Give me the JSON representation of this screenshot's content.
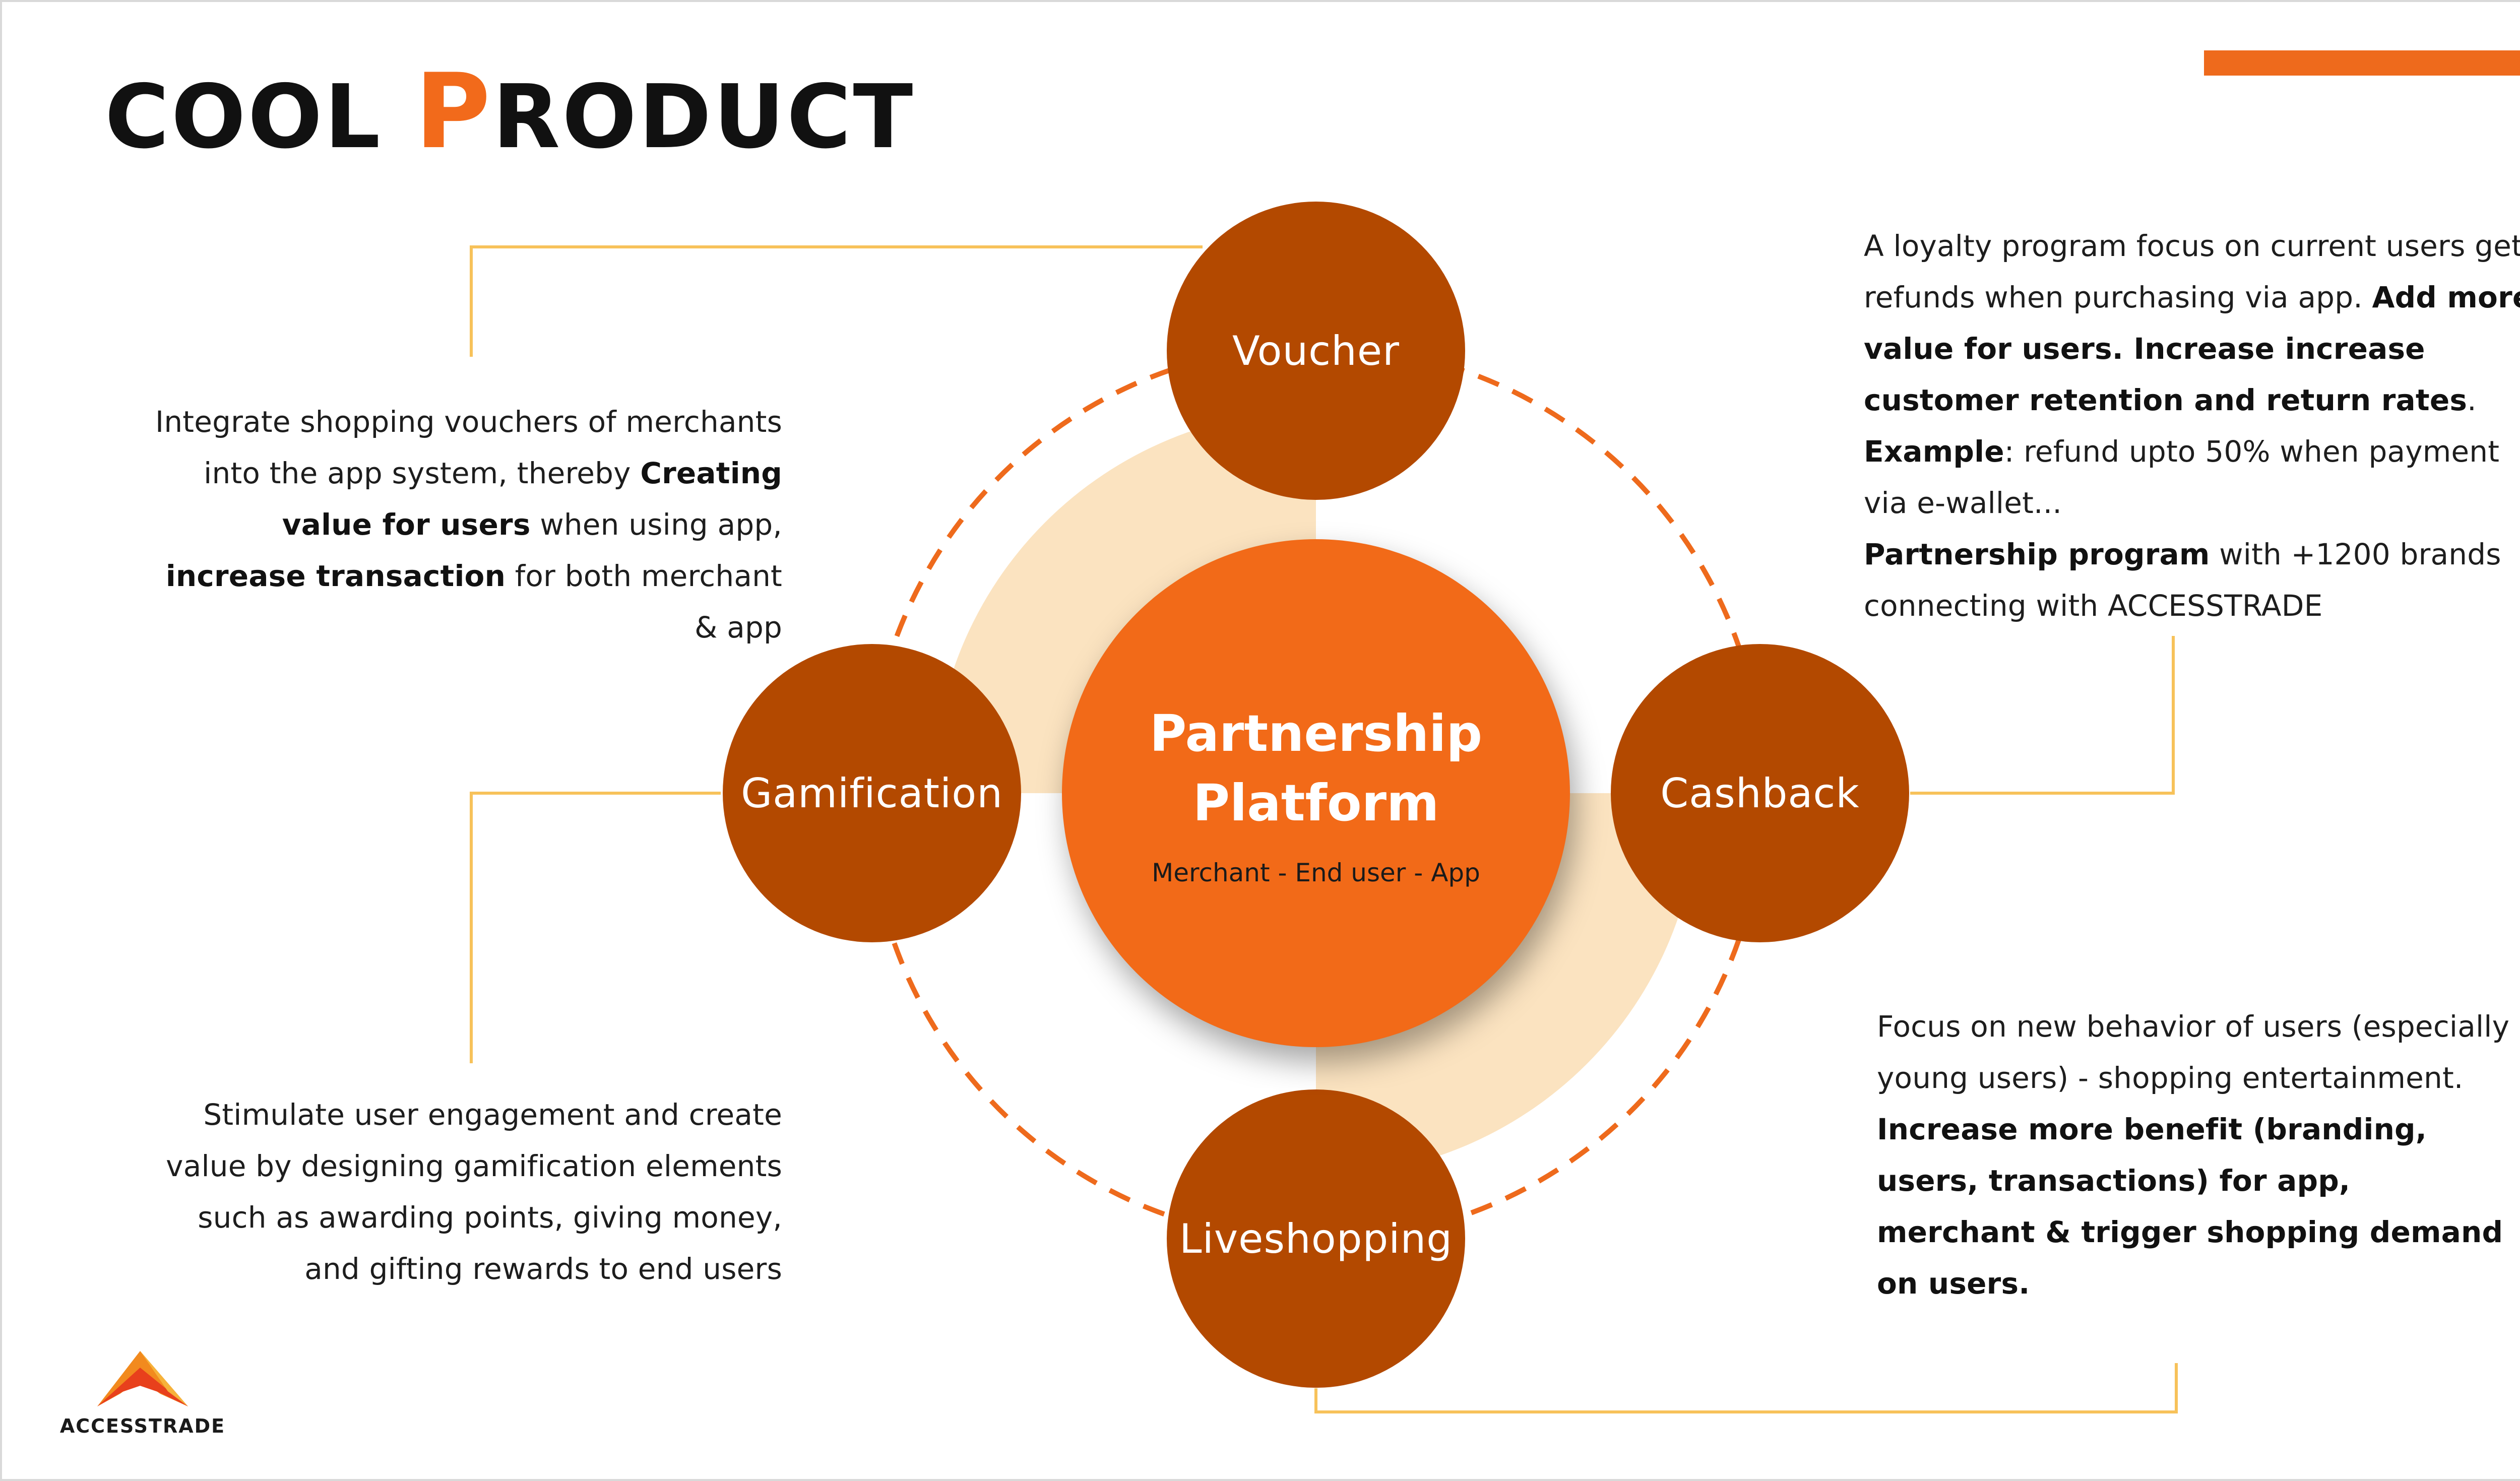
{
  "title": {
    "first": "COOL ",
    "accent": "P",
    "rest": "RODUCT"
  },
  "center": {
    "title": "Partnership Platform",
    "subtitle": "Merchant - End user - App"
  },
  "nodes": {
    "voucher": "Voucher",
    "gamification": "Gamification",
    "cashback": "Cashback",
    "liveshopping": "Liveshopping"
  },
  "descriptions": {
    "voucher": [
      {
        "text": "Integrate shopping vouchers of merchants into the app system, thereby ",
        "bold": false
      },
      {
        "text": "Creating value for users",
        "bold": true
      },
      {
        "text": " when using app, ",
        "bold": false
      },
      {
        "text": "increase transaction",
        "bold": true
      },
      {
        "text": " for both merchant & app",
        "bold": false
      }
    ],
    "gamification": [
      {
        "text": "Stimulate user engagement and create value by designing gamification elements such as awarding points, giving money, and gifting rewards to end users",
        "bold": false
      }
    ],
    "cashback": [
      {
        "text": "A loyalty program focus on current users get refunds when purchasing via app. ",
        "bold": false
      },
      {
        "text": "Add more value for users. Increase increase customer retention and return rates",
        "bold": true
      },
      {
        "text": ". ",
        "bold": false
      },
      {
        "text": "Example",
        "bold": true
      },
      {
        "text": ": refund upto 50% when payment via e-wallet...",
        "bold": false
      },
      {
        "text": "\n",
        "bold": false
      },
      {
        "text": "Partnership program",
        "bold": true
      },
      {
        "text": " with +1200 brands connecting with ACCESSTRADE",
        "bold": false
      }
    ],
    "liveshopping": [
      {
        "text": "Focus on new behavior of users (especially young users) -  shopping entertainment.",
        "bold": false
      },
      {
        "text": "\n",
        "bold": false
      },
      {
        "text": "Increase more benefit  (branding, users, transactions)  for app, merchant & trigger shopping demand on users.",
        "bold": true
      }
    ]
  },
  "logo": {
    "text": "ACCESSTRADE"
  },
  "colors": {
    "accent": "#f26a1b",
    "node": "#b34900",
    "center": "#f26a18",
    "ring": "#fbe3c0",
    "dash": "#ee6a1c",
    "connector": "#f7c25a"
  }
}
